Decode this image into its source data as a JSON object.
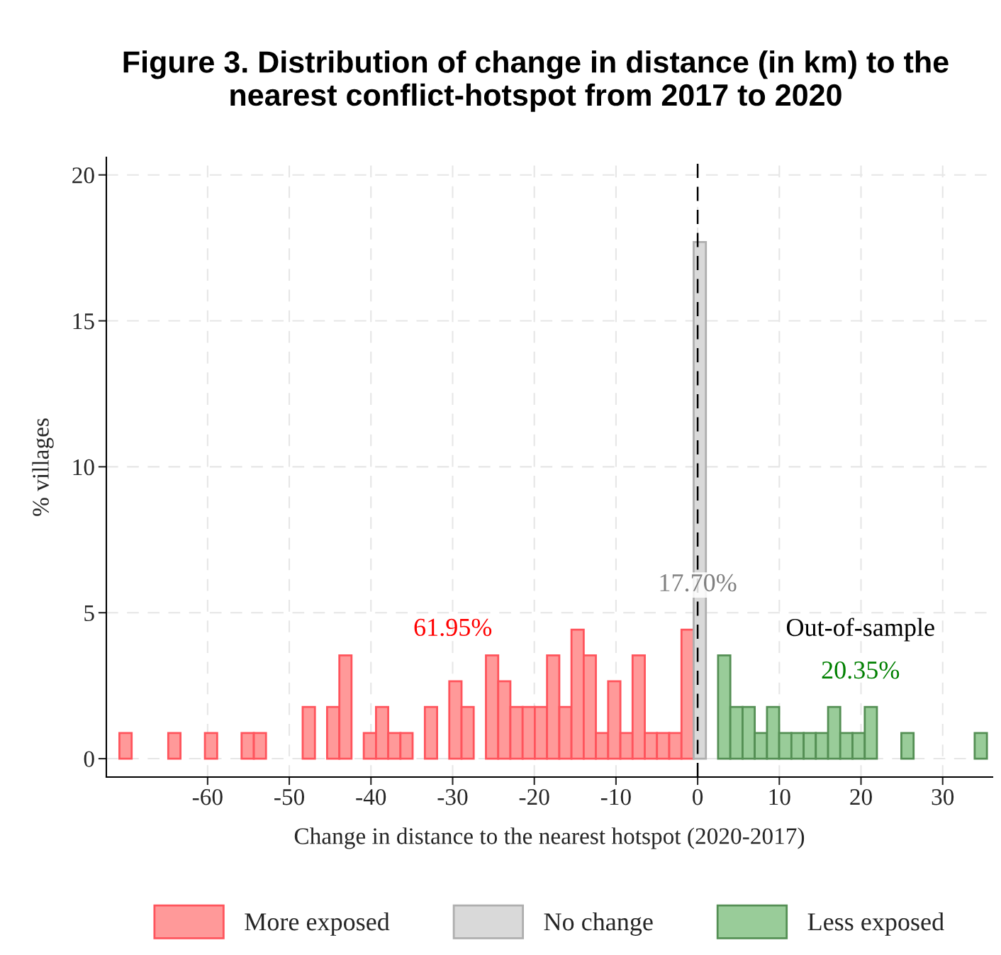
{
  "chart_data": {
    "type": "histogram",
    "title": "Figure 3. Distribution of change in distance (in km) to the nearest conflict-hotspot from 2017 to 2020",
    "xlabel": "Change in distance to the nearest hotspot (2020-2017)",
    "ylabel": "% villages",
    "bins": [
      -70.8,
      -69.3,
      -67.81,
      -66.31,
      -64.82,
      -63.32,
      -61.82,
      -60.33,
      -58.83,
      -57.34,
      -55.84,
      -54.34,
      -52.85,
      -51.35,
      -49.86,
      -48.36,
      -46.86,
      -45.37,
      -43.87,
      -42.38,
      -40.88,
      -39.38,
      -37.89,
      -36.39,
      -34.9,
      -33.4,
      -31.9,
      -30.41,
      -28.91,
      -27.42,
      -25.92,
      -24.42,
      -22.93,
      -21.43,
      -19.94,
      -18.44,
      -16.94,
      -15.45,
      -13.95,
      -12.46,
      -10.96,
      -9.46,
      -7.97,
      -6.47,
      -4.98,
      -3.48,
      -1.98,
      -0.49,
      1.01,
      2.5,
      4.0,
      5.5,
      6.99,
      8.49,
      9.98,
      11.48,
      12.98,
      14.47,
      15.97,
      17.46,
      18.96,
      20.46,
      21.95,
      23.45,
      24.94,
      26.44,
      27.94,
      29.43,
      30.93,
      32.42,
      33.92,
      35.42
    ],
    "series": [
      {
        "name": "More exposed",
        "color": "#ff9999",
        "values": [
          0.88,
          0,
          0,
          0,
          0.88,
          0,
          0,
          0.88,
          0,
          0,
          0.88,
          0.88,
          0,
          0,
          0,
          1.77,
          0,
          1.77,
          3.54,
          0,
          0.88,
          1.77,
          0.88,
          0.88,
          0,
          1.77,
          0,
          2.65,
          1.77,
          0,
          3.54,
          2.65,
          1.77,
          1.77,
          1.77,
          3.54,
          1.77,
          4.42,
          3.54,
          0.88,
          2.65,
          0.88,
          3.54,
          0.88,
          0.88,
          0.88,
          4.42,
          null,
          null,
          null,
          null,
          null,
          null,
          null,
          null,
          null,
          null,
          null,
          null,
          null,
          null,
          null,
          null,
          null,
          null,
          null,
          null,
          null,
          null,
          null,
          null
        ]
      },
      {
        "name": "No change",
        "color": "#d9d9d9",
        "values": [
          null,
          null,
          null,
          null,
          null,
          null,
          null,
          null,
          null,
          null,
          null,
          null,
          null,
          null,
          null,
          null,
          null,
          null,
          null,
          null,
          null,
          null,
          null,
          null,
          null,
          null,
          null,
          null,
          null,
          null,
          null,
          null,
          null,
          null,
          null,
          null,
          null,
          null,
          null,
          null,
          null,
          null,
          null,
          null,
          null,
          null,
          null,
          17.7,
          null,
          null,
          null,
          null,
          null,
          null,
          null,
          null,
          null,
          null,
          null,
          null,
          null,
          null,
          null,
          null,
          null,
          null,
          null,
          null,
          null,
          null,
          null
        ]
      },
      {
        "name": "Less exposed",
        "color": "#99cc99",
        "values": [
          null,
          null,
          null,
          null,
          null,
          null,
          null,
          null,
          null,
          null,
          null,
          null,
          null,
          null,
          null,
          null,
          null,
          null,
          null,
          null,
          null,
          null,
          null,
          null,
          null,
          null,
          null,
          null,
          null,
          null,
          null,
          null,
          null,
          null,
          null,
          null,
          null,
          null,
          null,
          null,
          null,
          null,
          null,
          null,
          null,
          null,
          null,
          null,
          0,
          3.54,
          1.77,
          1.77,
          0.88,
          1.77,
          0.88,
          0.88,
          0.88,
          0.88,
          1.77,
          0.88,
          0.88,
          1.77,
          0,
          0,
          0.88,
          0,
          0,
          0,
          0,
          0,
          0.88
        ]
      }
    ],
    "xlim": [
      -72.4,
      36.1
    ],
    "xticks": [
      -60,
      -50,
      -40,
      -30,
      -20,
      -10,
      0,
      10,
      20,
      30
    ],
    "ylim": [
      -0.63,
      20.6
    ],
    "yticks": [
      0,
      5,
      10,
      15,
      20
    ],
    "ref_lines": [
      {
        "axis": "x",
        "value": 0,
        "color": "#000000",
        "line_style": "dashed"
      }
    ],
    "annotations": [
      "61.95%",
      {
        "text": "17.70%",
        "x": 0,
        "y": 5.95
      },
      "Out-of-sample",
      "20.35%"
    ],
    "grid": true,
    "legend": "bottom"
  }
}
